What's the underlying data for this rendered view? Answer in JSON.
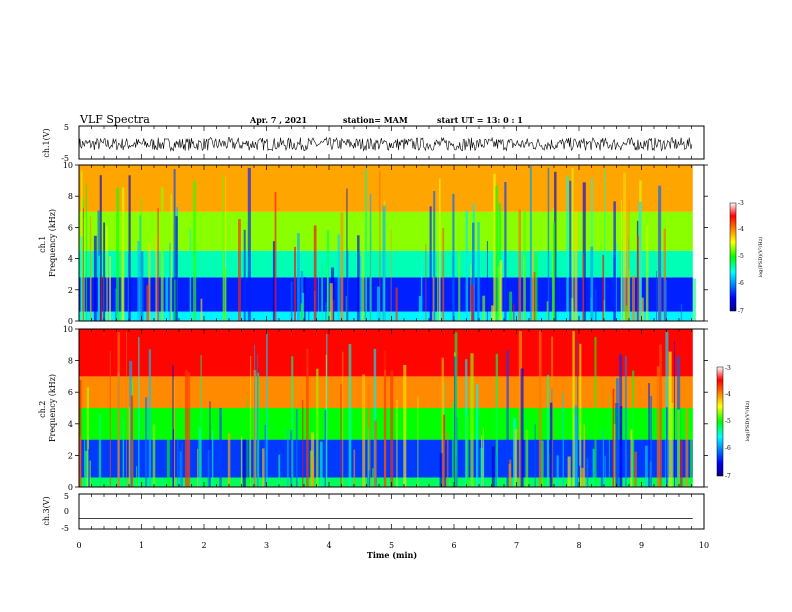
{
  "header": {
    "title": "VLF Spectra",
    "date": "Apr. 7 , 2021",
    "station": "station= MAM",
    "start_ut": "start UT =  13: 0  : 1"
  },
  "chart_data": [
    {
      "type": "line",
      "panel": "ch1-waveform",
      "ylabel": "ch.1(V)",
      "ylim": [
        -5,
        5
      ],
      "yticks": [
        "5",
        "-5"
      ],
      "trace": "noisy waveform, approx -2.5 to +1.5 V",
      "xlim": [
        0,
        10
      ]
    },
    {
      "type": "heatmap",
      "panel": "ch1-spectrogram",
      "ylabel": "ch.1\nFrequency (kHz)",
      "ylim": [
        0,
        10
      ],
      "yticks": [
        "0",
        "2",
        "4",
        "6",
        "8",
        "10"
      ],
      "xlim": [
        0,
        9.82
      ],
      "colorbar": {
        "label": "log(PSD)(V²/Hz)",
        "ticks": [
          "-3",
          "-4",
          "-5",
          "-6",
          "-7"
        ],
        "range": [
          -7,
          -3
        ]
      },
      "bands": [
        {
          "from": 0,
          "to": 0.6,
          "level": -5.6
        },
        {
          "from": 0.6,
          "to": 2.8,
          "level": -6.4
        },
        {
          "from": 2.8,
          "to": 4.5,
          "level": -5.4
        },
        {
          "from": 4.5,
          "to": 7,
          "level": -4.7
        },
        {
          "from": 7,
          "to": 10,
          "level": -4.1
        }
      ]
    },
    {
      "type": "heatmap",
      "panel": "ch2-spectrogram",
      "ylabel": "ch.2\nFrequency (kHz)",
      "ylim": [
        0,
        10
      ],
      "yticks": [
        "0",
        "2",
        "4",
        "6",
        "8",
        "10"
      ],
      "xlim": [
        0,
        9.82
      ],
      "colorbar": {
        "label": "log(PSD)(V²/Hz)",
        "ticks": [
          "-3",
          "-4",
          "-5",
          "-6",
          "-7"
        ],
        "range": [
          -7,
          -3
        ]
      },
      "bands": [
        {
          "from": 0,
          "to": 0.6,
          "level": -5.2
        },
        {
          "from": 0.6,
          "to": 3,
          "level": -6.3
        },
        {
          "from": 3,
          "to": 5,
          "level": -5.0
        },
        {
          "from": 5,
          "to": 7,
          "level": -4.0
        },
        {
          "from": 7,
          "to": 10,
          "level": -3.5
        }
      ]
    },
    {
      "type": "line",
      "panel": "ch3-waveform",
      "ylabel": "ch.3(V)",
      "ylim": [
        -5,
        5
      ],
      "yticks": [
        "5",
        "0",
        "-5"
      ],
      "trace_value": -2,
      "xlabel": "Time (min)",
      "xlim": [
        0,
        10
      ],
      "xticks": [
        "0",
        "1",
        "2",
        "3",
        "4",
        "5",
        "6",
        "7",
        "8",
        "9",
        "10"
      ]
    }
  ]
}
